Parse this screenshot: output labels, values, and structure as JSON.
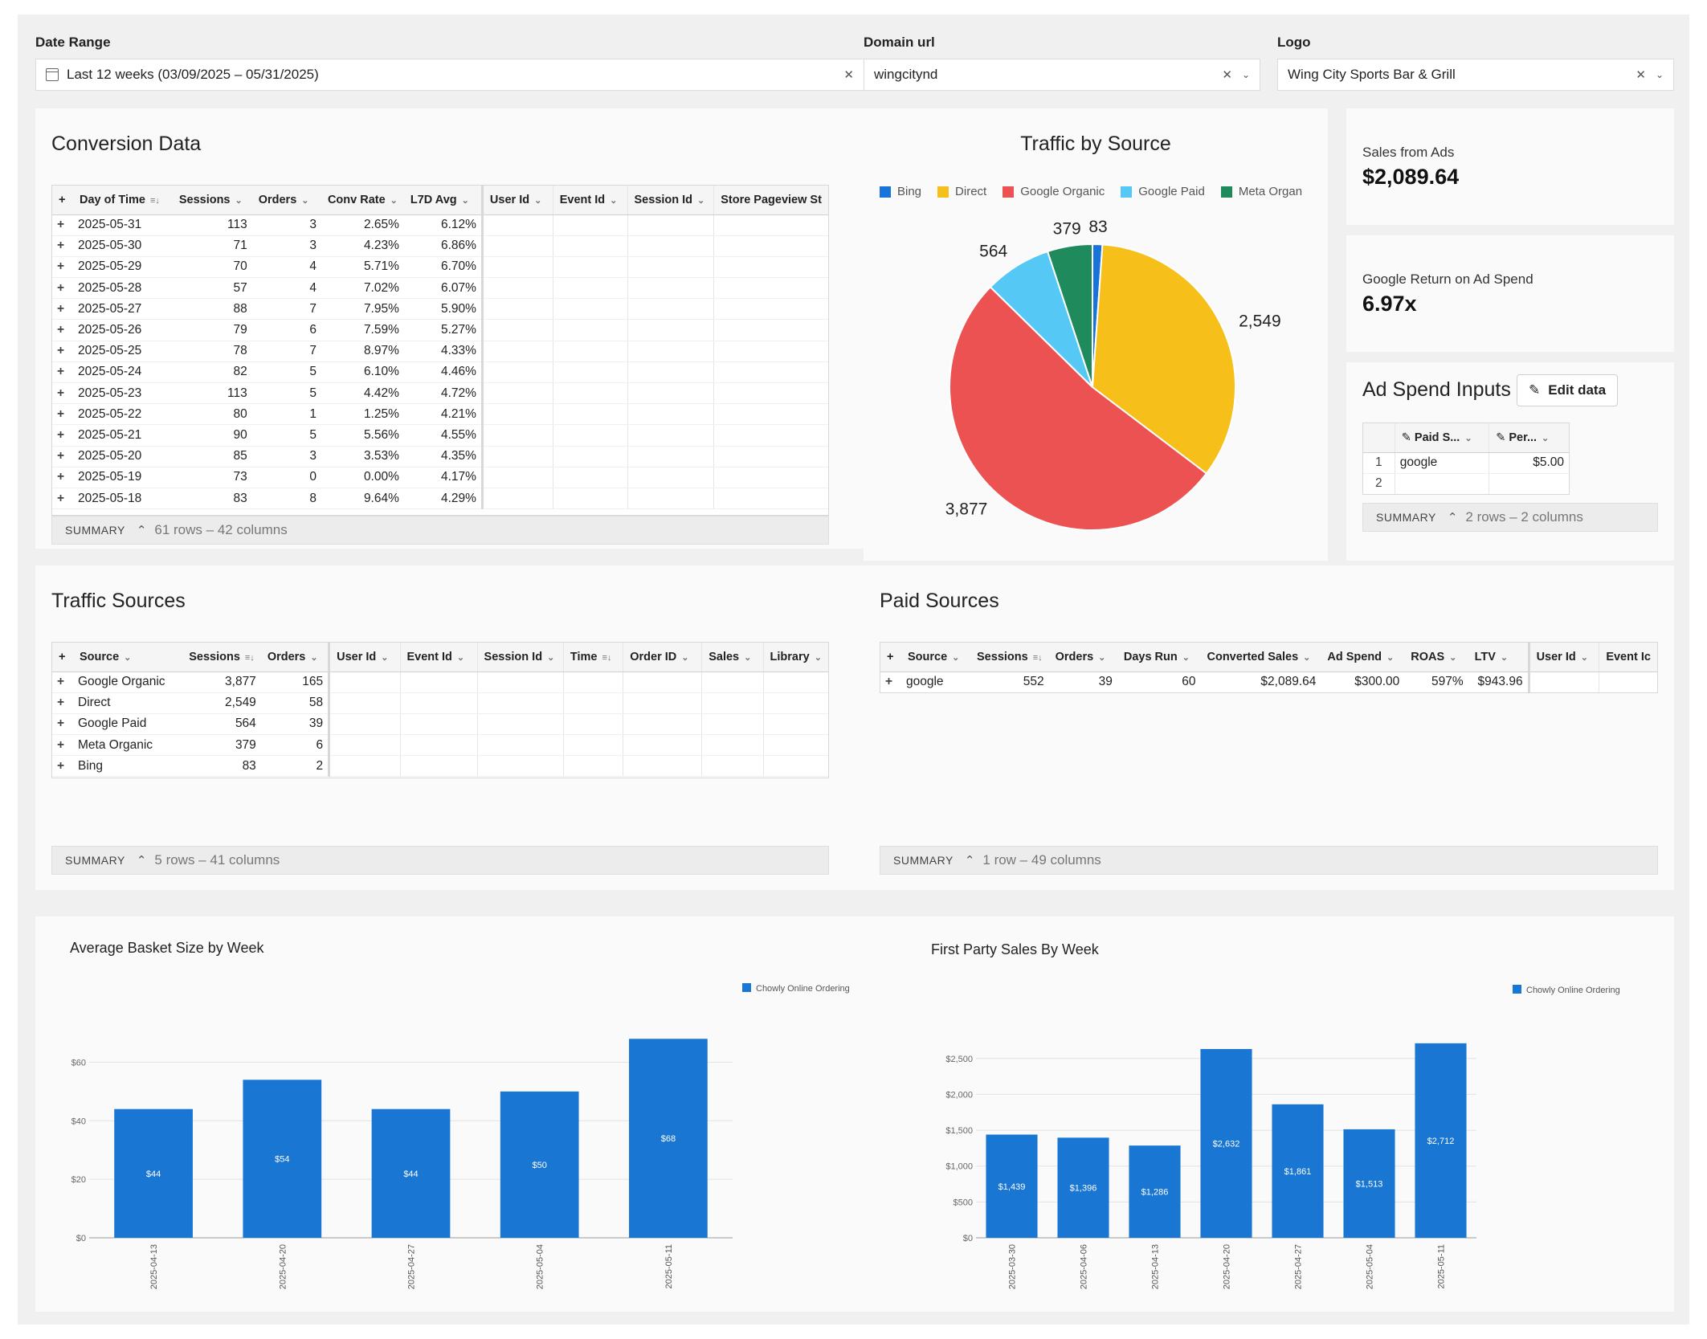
{
  "filters": {
    "date_range": {
      "label": "Date Range",
      "value": "Last 12 weeks (03/09/2025 – 05/31/2025)"
    },
    "domain": {
      "label": "Domain url",
      "value": "wingcitynd"
    },
    "logo": {
      "label": "Logo",
      "value": "Wing City Sports Bar & Grill"
    }
  },
  "conversion": {
    "title": "Conversion Data",
    "columns": [
      "Day of Time",
      "Sessions",
      "Orders",
      "Conv Rate",
      "L7D Avg",
      "User Id",
      "Event Id",
      "Session Id",
      "Store Pageview St"
    ],
    "rows": [
      [
        "2025-05-31",
        "113",
        "3",
        "2.65%",
        "6.12%"
      ],
      [
        "2025-05-30",
        "71",
        "3",
        "4.23%",
        "6.86%"
      ],
      [
        "2025-05-29",
        "70",
        "4",
        "5.71%",
        "6.70%"
      ],
      [
        "2025-05-28",
        "57",
        "4",
        "7.02%",
        "6.07%"
      ],
      [
        "2025-05-27",
        "88",
        "7",
        "7.95%",
        "5.90%"
      ],
      [
        "2025-05-26",
        "79",
        "6",
        "7.59%",
        "5.27%"
      ],
      [
        "2025-05-25",
        "78",
        "7",
        "8.97%",
        "4.33%"
      ],
      [
        "2025-05-24",
        "82",
        "5",
        "6.10%",
        "4.46%"
      ],
      [
        "2025-05-23",
        "113",
        "5",
        "4.42%",
        "4.72%"
      ],
      [
        "2025-05-22",
        "80",
        "1",
        "1.25%",
        "4.21%"
      ],
      [
        "2025-05-21",
        "90",
        "5",
        "5.56%",
        "4.55%"
      ],
      [
        "2025-05-20",
        "85",
        "3",
        "3.53%",
        "4.35%"
      ],
      [
        "2025-05-19",
        "73",
        "0",
        "0.00%",
        "4.17%"
      ],
      [
        "2025-05-18",
        "83",
        "8",
        "9.64%",
        "4.29%"
      ]
    ],
    "summary": {
      "label": "SUMMARY",
      "meta": "61 rows – 42 columns"
    }
  },
  "traffic_by_source": {
    "title": "Traffic by Source",
    "legend": [
      {
        "name": "Bing",
        "color": "#1a73d9"
      },
      {
        "name": "Direct",
        "color": "#f6bf1a"
      },
      {
        "name": "Google Organic",
        "color": "#ec5252"
      },
      {
        "name": "Google Paid",
        "color": "#55c8f5"
      },
      {
        "name": "Meta Organ",
        "color": "#1f8a5b"
      }
    ]
  },
  "kpis": {
    "sales_from_ads": {
      "label": "Sales from Ads",
      "value": "$2,089.64"
    },
    "google_roas": {
      "label": "Google Return on Ad Spend",
      "value": "6.97x"
    }
  },
  "ad_spend": {
    "title": "Ad Spend Inputs",
    "edit_label": "Edit data",
    "columns": [
      "Paid S...",
      "Per..."
    ],
    "rows": [
      [
        "1",
        "google",
        "$5.00"
      ],
      [
        "2",
        "",
        ""
      ]
    ],
    "summary": {
      "label": "SUMMARY",
      "meta": "2 rows – 2 columns"
    }
  },
  "traffic_sources": {
    "title": "Traffic Sources",
    "columns": [
      "Source",
      "Sessions",
      "Orders",
      "User Id",
      "Event Id",
      "Session Id",
      "Time",
      "Order ID",
      "Sales",
      "Library"
    ],
    "rows": [
      [
        "Google Organic",
        "3,877",
        "165"
      ],
      [
        "Direct",
        "2,549",
        "58"
      ],
      [
        "Google Paid",
        "564",
        "39"
      ],
      [
        "Meta Organic",
        "379",
        "6"
      ],
      [
        "Bing",
        "83",
        "2"
      ]
    ],
    "summary": {
      "label": "SUMMARY",
      "meta": "5 rows – 41 columns"
    }
  },
  "paid_sources": {
    "title": "Paid Sources",
    "columns": [
      "Source",
      "Sessions",
      "Orders",
      "Days Run",
      "Converted Sales",
      "Ad Spend",
      "ROAS",
      "LTV",
      "User Id",
      "Event Ic"
    ],
    "rows": [
      [
        "google",
        "552",
        "39",
        "60",
        "$2,089.64",
        "$300.00",
        "597%",
        "$943.96"
      ]
    ],
    "summary": {
      "label": "SUMMARY",
      "meta": "1 row – 49 columns"
    }
  },
  "chart_data": [
    {
      "type": "pie",
      "title": "Traffic by Source",
      "categories": [
        "Bing",
        "Direct",
        "Google Organic",
        "Google Paid",
        "Meta Organic"
      ],
      "values": [
        83,
        2549,
        3877,
        564,
        379
      ],
      "data_labels": [
        "83",
        "2,549",
        "3,877",
        "564",
        "379"
      ],
      "legend": "top"
    },
    {
      "type": "bar",
      "title": "Average Basket Size by Week",
      "categories": [
        "2025-04-13",
        "2025-04-20",
        "2025-04-27",
        "2025-05-04",
        "2025-05-11"
      ],
      "series": [
        {
          "name": "Chowly Online Ordering",
          "color": "#1976d2",
          "values": [
            44,
            54,
            44,
            50,
            68
          ],
          "labels": [
            "$44",
            "$54",
            "$44",
            "$50",
            "$68"
          ]
        }
      ],
      "ylim": [
        0,
        70
      ],
      "yticks": [
        0,
        20,
        40,
        60
      ],
      "ytick_labels": [
        "$0",
        "$20",
        "$40",
        "$60"
      ],
      "grid": true,
      "legend": "top-right"
    },
    {
      "type": "bar",
      "title": "First Party Sales By Week",
      "categories": [
        "2025-03-30",
        "2025-04-06",
        "2025-04-13",
        "2025-04-20",
        "2025-04-27",
        "2025-05-04",
        "2025-05-11"
      ],
      "series": [
        {
          "name": "Chowly Online Ordering",
          "color": "#1976d2",
          "values": [
            1439,
            1396,
            1286,
            2632,
            1861,
            1513,
            2712
          ],
          "labels": [
            "$1,439",
            "$1,396",
            "$1,286",
            "$2,632",
            "$1,861",
            "$1,513",
            "$2,712"
          ]
        }
      ],
      "ylim": [
        0,
        2800
      ],
      "yticks": [
        0,
        500,
        1000,
        1500,
        2000,
        2500
      ],
      "ytick_labels": [
        "$0",
        "$500",
        "$1,000",
        "$1,500",
        "$2,000",
        "$2,500"
      ],
      "grid": true,
      "legend": "top-right"
    }
  ]
}
